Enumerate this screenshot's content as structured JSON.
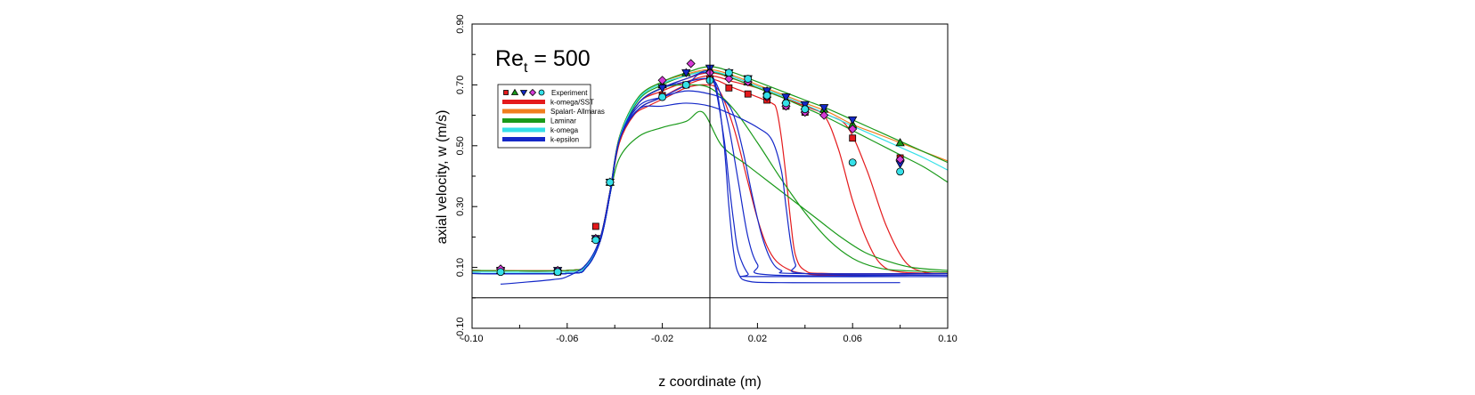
{
  "chart_data": {
    "type": "line",
    "title": "",
    "annotation": {
      "main": "Re",
      "sub": "t",
      "rest": " = 500"
    },
    "xlabel": "z coordinate (m)",
    "ylabel": "axial velocity, w (m/s)",
    "xlim": [
      -0.1,
      0.1
    ],
    "ylim": [
      -0.1,
      0.9
    ],
    "xticks": [
      "-0.10",
      "-0.06",
      "-0.02",
      "0.02",
      "0.06",
      "0.10"
    ],
    "xtick_values": [
      -0.1,
      -0.06,
      -0.02,
      0.02,
      0.06,
      0.1
    ],
    "yticks": [
      "-0.10",
      "0.10",
      "0.30",
      "0.50",
      "0.70",
      "0.90"
    ],
    "ytick_values": [
      -0.1,
      0.1,
      0.3,
      0.5,
      0.7,
      0.9
    ],
    "reference_lines": {
      "horizontal_y": 0.0,
      "vertical_x": 0.0
    },
    "legend": {
      "placement": "top-left",
      "entries": [
        {
          "label": "Experiment",
          "kind": "markers"
        },
        {
          "label": "k-omega/SST",
          "color": "#e41a1c"
        },
        {
          "label": "Spalart- Allmaras",
          "color": "#f07e1e"
        },
        {
          "label": "Laminar",
          "color": "#1a9a1a"
        },
        {
          "label": "k-omega",
          "color": "#35e0e8"
        },
        {
          "label": "k-epsilon",
          "color": "#1428c8"
        }
      ]
    },
    "experiment": [
      {
        "name": "Experiment (square)",
        "marker": "square",
        "color": "#e41a1c",
        "x": [
          -0.088,
          -0.064,
          -0.048,
          -0.042,
          -0.02,
          -0.01,
          0.0,
          0.008,
          0.016,
          0.024,
          0.032,
          0.04,
          0.06,
          0.08
        ],
        "y": [
          0.09,
          0.085,
          0.235,
          0.38,
          0.665,
          0.7,
          0.72,
          0.69,
          0.67,
          0.65,
          0.63,
          0.61,
          0.525,
          0.46
        ]
      },
      {
        "name": "Experiment (triangle up)",
        "marker": "triangle-up",
        "color": "#1a9a1a",
        "x": [
          -0.088,
          -0.064,
          -0.048,
          -0.042,
          -0.02,
          -0.01,
          0.0,
          0.008,
          0.016,
          0.024,
          0.032,
          0.04,
          0.048,
          0.06,
          0.08
        ],
        "y": [
          0.09,
          0.09,
          0.195,
          0.38,
          0.7,
          0.74,
          0.75,
          0.74,
          0.71,
          0.68,
          0.65,
          0.63,
          0.62,
          0.57,
          0.51
        ]
      },
      {
        "name": "Experiment (triangle down)",
        "marker": "triangle-down",
        "color": "#1428c8",
        "x": [
          -0.088,
          -0.064,
          -0.048,
          -0.042,
          -0.02,
          -0.01,
          0.0,
          0.008,
          0.016,
          0.024,
          0.032,
          0.04,
          0.048,
          0.06,
          0.08
        ],
        "y": [
          0.09,
          0.09,
          0.195,
          0.38,
          0.69,
          0.74,
          0.755,
          0.74,
          0.72,
          0.68,
          0.66,
          0.635,
          0.625,
          0.585,
          0.44
        ]
      },
      {
        "name": "Experiment (diamond)",
        "marker": "diamond",
        "color": "#d63ad6",
        "x": [
          -0.088,
          -0.064,
          -0.048,
          -0.042,
          -0.02,
          -0.008,
          0.0,
          0.008,
          0.016,
          0.024,
          0.032,
          0.04,
          0.048,
          0.06,
          0.08
        ],
        "y": [
          0.095,
          0.09,
          0.195,
          0.38,
          0.715,
          0.77,
          0.74,
          0.72,
          0.71,
          0.66,
          0.63,
          0.61,
          0.6,
          0.555,
          0.455
        ]
      },
      {
        "name": "Experiment (circle)",
        "marker": "circle",
        "color": "#35e0e8",
        "x": [
          -0.088,
          -0.064,
          -0.048,
          -0.042,
          -0.02,
          -0.01,
          0.0,
          0.008,
          0.016,
          0.024,
          0.032,
          0.04,
          0.06,
          0.08
        ],
        "y": [
          0.085,
          0.085,
          0.19,
          0.38,
          0.66,
          0.7,
          0.715,
          0.74,
          0.72,
          0.665,
          0.64,
          0.62,
          0.445,
          0.415
        ]
      }
    ],
    "series": [
      {
        "name": "k-omega/SST",
        "color": "#e41a1c",
        "x": [
          -0.1,
          -0.06,
          -0.052,
          -0.046,
          -0.042,
          -0.038,
          -0.032,
          -0.026,
          -0.018,
          -0.01,
          -0.002,
          0.004,
          0.01,
          0.016,
          0.02,
          0.024,
          0.028,
          0.034,
          0.04,
          0.05,
          0.1
        ],
        "y": [
          0.09,
          0.09,
          0.11,
          0.2,
          0.35,
          0.51,
          0.6,
          0.63,
          0.66,
          0.69,
          0.7,
          0.68,
          0.56,
          0.38,
          0.26,
          0.17,
          0.12,
          0.09,
          0.08,
          0.075,
          0.075
        ]
      },
      {
        "name": "k-omega/SST",
        "color": "#e41a1c",
        "x": [
          -0.1,
          -0.06,
          -0.052,
          -0.046,
          -0.042,
          -0.038,
          -0.03,
          -0.02,
          -0.01,
          0.0,
          0.01,
          0.02,
          0.026,
          0.028,
          0.03,
          0.032,
          0.034,
          0.036,
          0.04,
          0.05,
          0.1
        ],
        "y": [
          0.09,
          0.09,
          0.11,
          0.2,
          0.35,
          0.52,
          0.62,
          0.66,
          0.7,
          0.72,
          0.69,
          0.66,
          0.64,
          0.62,
          0.53,
          0.4,
          0.25,
          0.14,
          0.09,
          0.08,
          0.08
        ]
      },
      {
        "name": "k-omega/SST",
        "color": "#e41a1c",
        "x": [
          -0.1,
          -0.06,
          -0.052,
          -0.046,
          -0.042,
          -0.038,
          -0.03,
          -0.02,
          -0.01,
          0.0,
          0.01,
          0.02,
          0.03,
          0.04,
          0.048,
          0.054,
          0.06,
          0.066,
          0.072,
          0.08,
          0.1
        ],
        "y": [
          0.09,
          0.09,
          0.11,
          0.2,
          0.35,
          0.52,
          0.64,
          0.68,
          0.71,
          0.73,
          0.71,
          0.69,
          0.66,
          0.63,
          0.6,
          0.49,
          0.32,
          0.19,
          0.11,
          0.085,
          0.08
        ]
      },
      {
        "name": "k-omega/SST",
        "color": "#e41a1c",
        "x": [
          -0.1,
          -0.06,
          -0.052,
          -0.046,
          -0.042,
          -0.038,
          -0.03,
          -0.02,
          -0.01,
          0.0,
          0.01,
          0.02,
          0.03,
          0.04,
          0.05,
          0.058,
          0.066,
          0.074,
          0.082,
          0.09,
          0.1
        ],
        "y": [
          0.09,
          0.09,
          0.11,
          0.2,
          0.35,
          0.52,
          0.64,
          0.69,
          0.72,
          0.74,
          0.72,
          0.69,
          0.66,
          0.63,
          0.6,
          0.56,
          0.42,
          0.24,
          0.12,
          0.085,
          0.08
        ]
      },
      {
        "name": "Spalart- Allmaras",
        "color": "#f07e1e",
        "x": [
          -0.1,
          -0.06,
          -0.052,
          -0.046,
          -0.042,
          -0.038,
          -0.03,
          -0.02,
          -0.01,
          0.0,
          0.01,
          0.02,
          0.03,
          0.04,
          0.05,
          0.06,
          0.07,
          0.08,
          0.09,
          0.1
        ],
        "y": [
          0.09,
          0.09,
          0.11,
          0.2,
          0.35,
          0.53,
          0.66,
          0.71,
          0.735,
          0.75,
          0.73,
          0.7,
          0.67,
          0.64,
          0.61,
          0.57,
          0.54,
          0.51,
          0.48,
          0.45
        ]
      },
      {
        "name": "Laminar",
        "color": "#1a9a1a",
        "x": [
          -0.1,
          -0.06,
          -0.052,
          -0.046,
          -0.042,
          -0.038,
          -0.03,
          -0.02,
          -0.01,
          0.0,
          0.01,
          0.02,
          0.03,
          0.04,
          0.05,
          0.06,
          0.07,
          0.08,
          0.09,
          0.1
        ],
        "y": [
          0.09,
          0.09,
          0.11,
          0.2,
          0.35,
          0.53,
          0.66,
          0.71,
          0.74,
          0.76,
          0.74,
          0.71,
          0.68,
          0.65,
          0.62,
          0.585,
          0.55,
          0.515,
          0.48,
          0.445
        ]
      },
      {
        "name": "Laminar",
        "color": "#1a9a1a",
        "x": [
          -0.1,
          -0.06,
          -0.052,
          -0.046,
          -0.042,
          -0.038,
          -0.03,
          -0.02,
          -0.01,
          0.0,
          0.01,
          0.02,
          0.03,
          0.04,
          0.05,
          0.06,
          0.07,
          0.08,
          0.09,
          0.1
        ],
        "y": [
          0.08,
          0.08,
          0.1,
          0.19,
          0.34,
          0.52,
          0.65,
          0.7,
          0.73,
          0.745,
          0.72,
          0.69,
          0.66,
          0.625,
          0.59,
          0.55,
          0.51,
          0.47,
          0.43,
          0.38
        ]
      },
      {
        "name": "Laminar",
        "color": "#1a9a1a",
        "x": [
          -0.1,
          -0.06,
          -0.052,
          -0.046,
          -0.042,
          -0.038,
          -0.03,
          -0.02,
          -0.01,
          -0.003,
          0.005,
          0.015,
          0.025,
          0.035,
          0.045,
          0.055,
          0.065,
          0.075,
          0.085,
          0.1
        ],
        "y": [
          0.08,
          0.08,
          0.1,
          0.19,
          0.34,
          0.46,
          0.53,
          0.56,
          0.58,
          0.61,
          0.5,
          0.44,
          0.38,
          0.32,
          0.26,
          0.2,
          0.15,
          0.12,
          0.1,
          0.09
        ]
      },
      {
        "name": "Laminar",
        "color": "#1a9a1a",
        "x": [
          -0.1,
          -0.06,
          -0.052,
          -0.046,
          -0.042,
          -0.038,
          -0.03,
          -0.02,
          -0.01,
          0.0,
          0.01,
          0.02,
          0.03,
          0.04,
          0.05,
          0.06,
          0.07,
          0.08,
          0.1
        ],
        "y": [
          0.08,
          0.08,
          0.1,
          0.19,
          0.34,
          0.52,
          0.64,
          0.69,
          0.7,
          0.69,
          0.62,
          0.51,
          0.39,
          0.28,
          0.19,
          0.13,
          0.1,
          0.09,
          0.085
        ]
      },
      {
        "name": "k-omega",
        "color": "#35e0e8",
        "x": [
          -0.1,
          -0.06,
          -0.052,
          -0.046,
          -0.042,
          -0.038,
          -0.03,
          -0.02,
          -0.01,
          0.0,
          0.01,
          0.02,
          0.03,
          0.04,
          0.05,
          0.06,
          0.07,
          0.08,
          0.09,
          0.1
        ],
        "y": [
          0.085,
          0.085,
          0.105,
          0.195,
          0.345,
          0.525,
          0.655,
          0.705,
          0.73,
          0.745,
          0.725,
          0.695,
          0.665,
          0.635,
          0.6,
          0.565,
          0.53,
          0.495,
          0.46,
          0.42
        ]
      },
      {
        "name": "k-epsilon",
        "color": "#1428c8",
        "x": [
          -0.088,
          -0.08,
          -0.066,
          -0.06,
          -0.052,
          -0.046,
          -0.042,
          -0.038,
          -0.03,
          -0.02,
          -0.01,
          -0.004,
          0.0,
          0.003,
          0.006,
          0.008,
          0.01,
          0.012,
          0.016,
          0.03,
          0.08
        ],
        "y": [
          0.045,
          0.05,
          0.06,
          0.07,
          0.11,
          0.2,
          0.35,
          0.52,
          0.62,
          0.66,
          0.7,
          0.74,
          0.74,
          0.68,
          0.5,
          0.3,
          0.15,
          0.08,
          0.055,
          0.05,
          0.05
        ]
      },
      {
        "name": "k-epsilon",
        "color": "#1428c8",
        "x": [
          -0.1,
          -0.06,
          -0.052,
          -0.046,
          -0.042,
          -0.038,
          -0.03,
          -0.02,
          -0.01,
          -0.002,
          0.002,
          0.006,
          0.008,
          0.01,
          0.012,
          0.016,
          0.02,
          0.1
        ],
        "y": [
          0.08,
          0.08,
          0.1,
          0.19,
          0.34,
          0.52,
          0.64,
          0.69,
          0.72,
          0.74,
          0.7,
          0.52,
          0.38,
          0.25,
          0.15,
          0.08,
          0.07,
          0.07
        ]
      },
      {
        "name": "k-epsilon",
        "color": "#1428c8",
        "x": [
          -0.1,
          -0.06,
          -0.052,
          -0.046,
          -0.042,
          -0.038,
          -0.03,
          -0.02,
          -0.01,
          0.0,
          0.004,
          0.008,
          0.012,
          0.016,
          0.02,
          0.026,
          0.1
        ],
        "y": [
          0.08,
          0.08,
          0.1,
          0.19,
          0.34,
          0.52,
          0.64,
          0.69,
          0.71,
          0.72,
          0.68,
          0.56,
          0.38,
          0.2,
          0.11,
          0.075,
          0.075
        ]
      },
      {
        "name": "k-epsilon",
        "color": "#1428c8",
        "x": [
          -0.1,
          -0.06,
          -0.052,
          -0.046,
          -0.042,
          -0.038,
          -0.03,
          -0.02,
          -0.01,
          0.0,
          0.006,
          0.01,
          0.014,
          0.018,
          0.022,
          0.026,
          0.03,
          0.036,
          0.1
        ],
        "y": [
          0.08,
          0.08,
          0.1,
          0.19,
          0.34,
          0.52,
          0.63,
          0.66,
          0.68,
          0.67,
          0.65,
          0.6,
          0.48,
          0.33,
          0.2,
          0.12,
          0.09,
          0.08,
          0.08
        ]
      },
      {
        "name": "k-epsilon",
        "color": "#1428c8",
        "x": [
          -0.1,
          -0.06,
          -0.052,
          -0.046,
          -0.042,
          -0.038,
          -0.03,
          -0.02,
          -0.01,
          0.0,
          0.01,
          0.02,
          0.026,
          0.03,
          0.032,
          0.034,
          0.036,
          0.04,
          0.1
        ],
        "y": [
          0.08,
          0.08,
          0.1,
          0.19,
          0.34,
          0.52,
          0.62,
          0.63,
          0.64,
          0.63,
          0.6,
          0.56,
          0.52,
          0.42,
          0.3,
          0.18,
          0.11,
          0.08,
          0.075
        ]
      }
    ]
  }
}
